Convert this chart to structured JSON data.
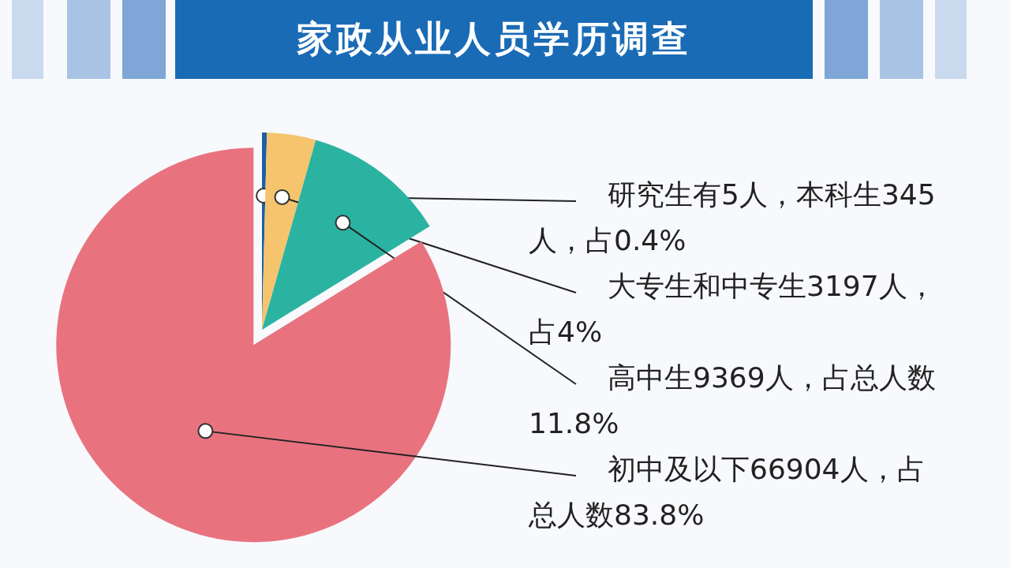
{
  "chart_data": {
    "type": "pie",
    "title": "家政从业人员学历调查",
    "categories": [
      "研究生有5人，本科生345人，占0.4%",
      "大专生和中专生3197人，占4%",
      "高中生9369人，占总人数11.8%",
      "初中及以下66904人，占总人数83.8%"
    ],
    "values": [
      0.4,
      4,
      11.8,
      83.8
    ],
    "colors": [
      "#1d5fa6",
      "#f5c46c",
      "#2bb3a2",
      "#e8737f"
    ]
  }
}
